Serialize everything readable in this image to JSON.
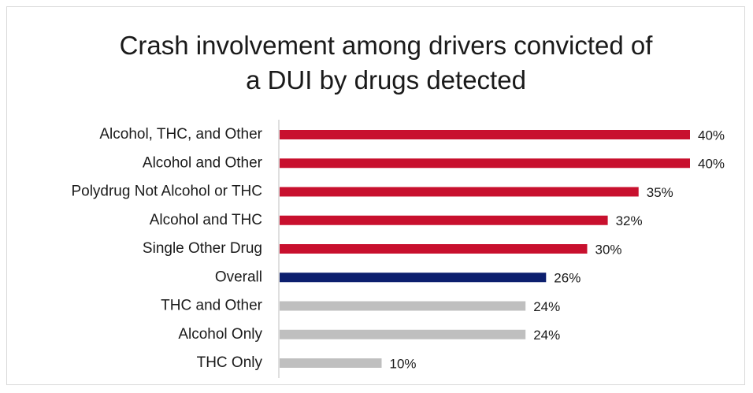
{
  "chart_data": {
    "type": "bar",
    "orientation": "horizontal",
    "title": "Crash involvement among drivers convicted of a DUI by drugs detected",
    "categories": [
      "Alcohol, THC, and Other",
      "Alcohol and Other",
      "Polydrug Not Alcohol or THC",
      "Alcohol and THC",
      "Single Other Drug",
      "Overall",
      "THC and Other",
      "Alcohol Only",
      "THC Only"
    ],
    "values": [
      40,
      40,
      35,
      32,
      30,
      26,
      24,
      24,
      10
    ],
    "value_labels": [
      "40%",
      "40%",
      "35%",
      "32%",
      "30%",
      "26%",
      "24%",
      "24%",
      "10%"
    ],
    "colors": [
      "#c8102e",
      "#c8102e",
      "#c8102e",
      "#c8102e",
      "#c8102e",
      "#0c1f6e",
      "#bfbfbf",
      "#bfbfbf",
      "#bfbfbf"
    ]
  }
}
